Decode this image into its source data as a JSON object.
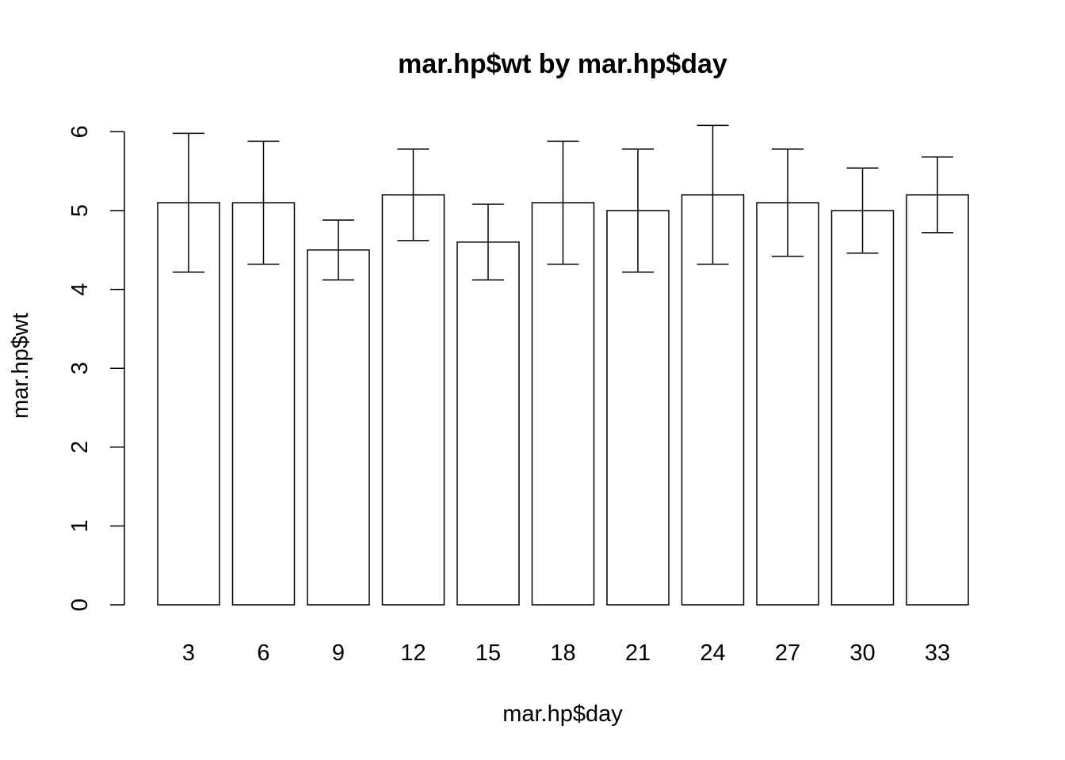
{
  "chart_data": {
    "type": "bar",
    "title": "mar.hp$wt by mar.hp$day",
    "xlabel": "mar.hp$day",
    "ylabel": "mar.hp$wt",
    "categories": [
      "3",
      "6",
      "9",
      "12",
      "15",
      "18",
      "21",
      "24",
      "27",
      "30",
      "33"
    ],
    "values": [
      5.1,
      5.1,
      4.5,
      5.2,
      4.6,
      5.1,
      5.0,
      5.2,
      5.1,
      5.0,
      5.2
    ],
    "error_low": [
      4.22,
      4.32,
      4.12,
      4.62,
      4.12,
      4.32,
      4.22,
      4.32,
      4.42,
      4.46,
      4.72
    ],
    "error_high": [
      5.98,
      5.88,
      4.88,
      5.78,
      5.08,
      5.88,
      5.78,
      6.08,
      5.78,
      5.54,
      5.68
    ],
    "yticks": [
      "0",
      "1",
      "2",
      "3",
      "4",
      "5",
      "6"
    ],
    "ylim": [
      0,
      6.1
    ],
    "grid": false,
    "legend": "none",
    "colors": {
      "bar_fill": "#ffffff",
      "bar_stroke": "#000000",
      "error_bar": "#000000"
    }
  }
}
